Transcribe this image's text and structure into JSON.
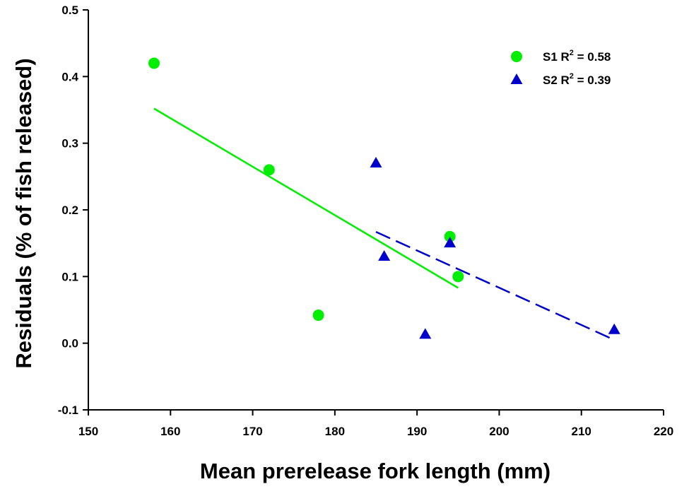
{
  "chart_data": {
    "type": "scatter",
    "title": "",
    "xlabel": "Mean prerelease fork length (mm)",
    "ylabel": "Residuals (% of fish released)",
    "xlim": [
      150,
      220
    ],
    "ylim": [
      -0.1,
      0.5
    ],
    "x_ticks": [
      "150",
      "160",
      "170",
      "180",
      "190",
      "200",
      "210",
      "220"
    ],
    "y_ticks": [
      "-0.1",
      "0.0",
      "0.1",
      "0.2",
      "0.3",
      "0.4",
      "0.5"
    ],
    "grid": false,
    "legend_position": "top-right",
    "series": [
      {
        "legend_label": "S1 R",
        "legend_sup": "2",
        "legend_value": " = 0.58",
        "marker": "circle",
        "color": "#00ee00",
        "points": [
          {
            "x": 158,
            "y": 0.42
          },
          {
            "x": 172,
            "y": 0.26
          },
          {
            "x": 178,
            "y": 0.042
          },
          {
            "x": 194,
            "y": 0.16
          },
          {
            "x": 195,
            "y": 0.1
          }
        ],
        "regression": {
          "style": "solid",
          "from": {
            "x": 158,
            "y": 0.352
          },
          "to": {
            "x": 195,
            "y": 0.083
          }
        }
      },
      {
        "legend_label": "S2 R",
        "legend_sup": "2",
        "legend_value": " = 0.39",
        "marker": "triangle",
        "color": "#0000cc",
        "points": [
          {
            "x": 185,
            "y": 0.27
          },
          {
            "x": 186,
            "y": 0.13
          },
          {
            "x": 191,
            "y": 0.013
          },
          {
            "x": 194,
            "y": 0.15
          },
          {
            "x": 214,
            "y": 0.02
          }
        ],
        "regression": {
          "style": "dashed",
          "from": {
            "x": 185,
            "y": 0.167
          },
          "to": {
            "x": 214,
            "y": 0.005
          }
        }
      }
    ]
  }
}
